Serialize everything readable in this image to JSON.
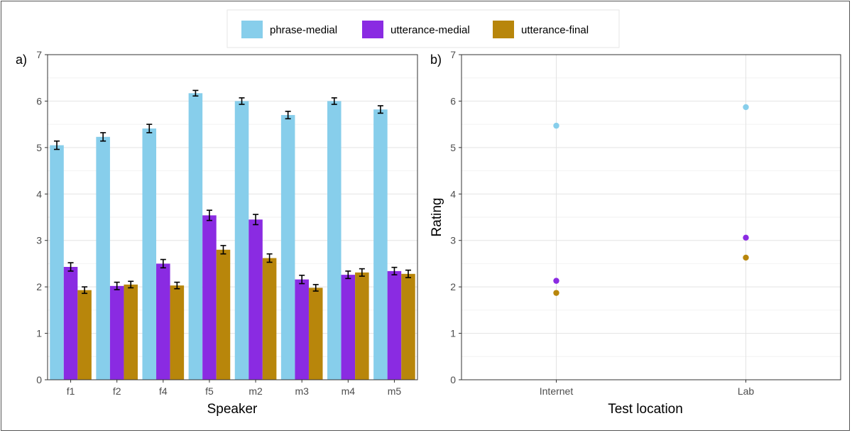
{
  "legend": {
    "entries": [
      {
        "label": "phrase-medial",
        "color": "#87CEEB"
      },
      {
        "label": "utterance-medial",
        "color": "#8A2BE2"
      },
      {
        "label": "utterance-final",
        "color": "#B8860B"
      }
    ]
  },
  "chart_data": [
    {
      "type": "bar",
      "panel_label": "a)",
      "xlabel": "Speaker",
      "ylabel": "",
      "ylim": [
        0,
        7
      ],
      "yticks": [
        0,
        1,
        2,
        3,
        4,
        5,
        6,
        7
      ],
      "categories": [
        "f1",
        "f2",
        "f4",
        "f5",
        "m2",
        "m3",
        "m4",
        "m5"
      ],
      "series": [
        {
          "name": "phrase-medial",
          "color": "#87CEEB",
          "values": [
            5.05,
            5.23,
            5.41,
            6.17,
            6.0,
            5.7,
            6.0,
            5.82
          ],
          "errors": [
            0.09,
            0.09,
            0.09,
            0.06,
            0.07,
            0.08,
            0.07,
            0.08
          ]
        },
        {
          "name": "utterance-medial",
          "color": "#8A2BE2",
          "values": [
            2.43,
            2.02,
            2.5,
            3.54,
            3.45,
            2.16,
            2.26,
            2.34
          ],
          "errors": [
            0.09,
            0.08,
            0.09,
            0.11,
            0.11,
            0.09,
            0.08,
            0.08
          ]
        },
        {
          "name": "utterance-final",
          "color": "#B8860B",
          "values": [
            1.93,
            2.05,
            2.03,
            2.8,
            2.62,
            1.98,
            2.31,
            2.28
          ],
          "errors": [
            0.07,
            0.07,
            0.07,
            0.09,
            0.09,
            0.07,
            0.08,
            0.08
          ]
        }
      ],
      "grid": true,
      "legend_position": "top"
    },
    {
      "type": "scatter",
      "panel_label": "b)",
      "xlabel": "Test location",
      "ylabel": "Rating",
      "ylim": [
        0,
        7
      ],
      "yticks": [
        0,
        1,
        2,
        3,
        4,
        5,
        6,
        7
      ],
      "categories": [
        "Internet",
        "Lab"
      ],
      "series": [
        {
          "name": "phrase-medial",
          "color": "#87CEEB",
          "values": [
            5.47,
            5.87
          ]
        },
        {
          "name": "utterance-medial",
          "color": "#8A2BE2",
          "values": [
            2.13,
            3.06
          ]
        },
        {
          "name": "utterance-final",
          "color": "#B8860B",
          "values": [
            1.87,
            2.63
          ]
        }
      ],
      "grid": true,
      "legend_position": "top"
    }
  ]
}
